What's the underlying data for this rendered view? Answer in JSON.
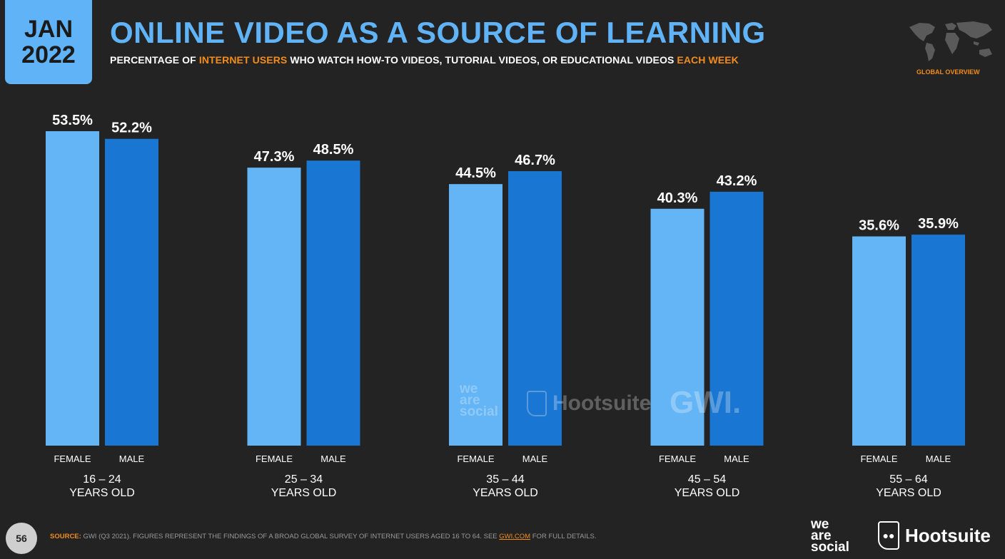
{
  "badge": {
    "month": "JAN",
    "year": "2022"
  },
  "header": {
    "title": "ONLINE VIDEO AS A SOURCE OF LEARNING",
    "subtitle_parts": {
      "p1": "PERCENTAGE OF ",
      "p2": "INTERNET USERS",
      "p3": " WHO WATCH HOW-TO VIDEOS, TUTORIAL VIDEOS, OR EDUCATIONAL VIDEOS ",
      "p4": "EACH WEEK"
    },
    "global_overview": "GLOBAL OVERVIEW"
  },
  "colors": {
    "female": "#64b5f6",
    "male": "#1976d2",
    "accent": "#f28c1c",
    "background": "#232323"
  },
  "chart_data": {
    "type": "bar",
    "title": "ONLINE VIDEO AS A SOURCE OF LEARNING",
    "categories": [
      "16 – 24",
      "25 – 34",
      "35 – 44",
      "45 – 54",
      "55 – 64"
    ],
    "category_suffix": "YEARS OLD",
    "series": [
      {
        "name": "FEMALE",
        "values": [
          53.5,
          47.3,
          44.5,
          40.3,
          35.6
        ],
        "labels": [
          "53.5%",
          "47.3%",
          "44.5%",
          "40.3%",
          "35.6%"
        ]
      },
      {
        "name": "MALE",
        "values": [
          52.2,
          48.5,
          46.7,
          43.2,
          35.9
        ],
        "labels": [
          "52.2%",
          "48.5%",
          "46.7%",
          "43.2%",
          "35.9%"
        ]
      }
    ],
    "ylim": [
      0,
      53.5
    ],
    "grid": false,
    "legend": "none"
  },
  "footer": {
    "page_number": "56",
    "source_label": "SOURCE:",
    "source_text": " GWI (Q3 2021). FIGURES REPRESENT THE FINDINGS OF A BROAD GLOBAL SURVEY OF INTERNET USERS AGED 16 TO 64. SEE ",
    "source_link": "GWI.COM",
    "source_tail": " FOR FULL DETAILS."
  },
  "logos": {
    "was_1": "we",
    "was_2": "are",
    "was_3": "social",
    "hootsuite": "Hootsuite",
    "gwi": "GWI."
  },
  "icons": {
    "owl": "hootsuite-owl-icon",
    "map": "world-map-icon"
  }
}
